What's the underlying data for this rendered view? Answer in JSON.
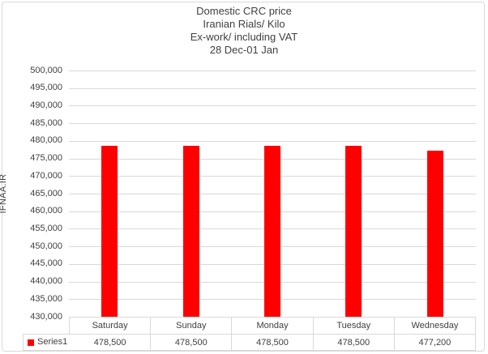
{
  "window": {
    "background": "#ffffff",
    "frame_border_color": "#d9d9d9"
  },
  "title": {
    "lines": [
      "Domestic CRC price",
      "Iranian Rials/ Kilo",
      "Ex-work/ including VAT",
      "28 Dec-01 Jan"
    ]
  },
  "chart_data": {
    "type": "bar",
    "title": "Domestic CRC price / Iranian Rials/ Kilo / Ex-work/ including VAT / 28 Dec-01 Jan",
    "categories": [
      "Saturday",
      "Sunday",
      "Monday",
      "Tuesday",
      "Wednesday"
    ],
    "series": [
      {
        "name": "Series1",
        "color": "#ff0000",
        "values": [
          478500,
          478500,
          478500,
          478500,
          477200
        ],
        "value_labels": [
          "478,500",
          "478,500",
          "478,500",
          "478,500",
          "477,200"
        ]
      }
    ],
    "xlabel": "",
    "ylabel": "IFNAA.IR",
    "ylim": [
      430000,
      500000
    ],
    "ytick_step": 5000,
    "ytick_labels": [
      "500,000",
      "495,000",
      "490,000",
      "485,000",
      "480,000",
      "475,000",
      "470,000",
      "465,000",
      "460,000",
      "455,000",
      "450,000",
      "445,000",
      "440,000",
      "435,000",
      "430,000"
    ],
    "grid": true,
    "gridline_color": "#d9d9d9",
    "axis_text_color": "#404040",
    "legend_position": "bottom-left",
    "data_table_shown": true
  },
  "legend": {
    "label": "Series1",
    "marker_color": "#ff0000"
  }
}
